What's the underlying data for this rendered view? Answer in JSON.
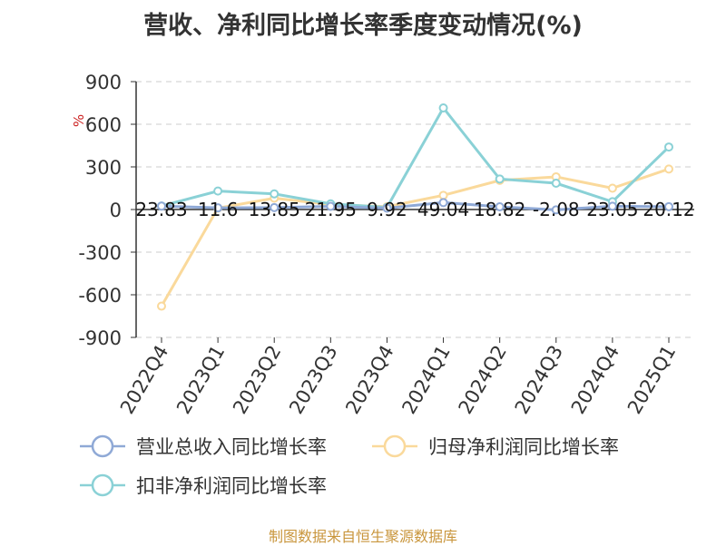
{
  "chart_data": {
    "type": "line",
    "title": "营收、净利同比增长率季度变动情况(%)",
    "ylabel": "%",
    "xlabel": "",
    "categories": [
      "2022Q4",
      "2023Q1",
      "2023Q2",
      "2023Q3",
      "2023Q4",
      "2024Q1",
      "2024Q2",
      "2024Q3",
      "2024Q4",
      "2025Q1"
    ],
    "ylim": [
      -900,
      900
    ],
    "yticks": [
      "900",
      "600",
      "300",
      "0",
      "-300",
      "-600",
      "-900"
    ],
    "grid": true,
    "legend_position": "bottom",
    "series": [
      {
        "name": "营业总收入同比增长率",
        "color": "#8fa9d6",
        "values": [
          23.83,
          11.6,
          13.85,
          21.95,
          9.92,
          49.04,
          18.82,
          -2.08,
          23.05,
          20.12
        ],
        "labels": [
          "23.83",
          "11.6",
          "13.85",
          "21.95",
          "9.92",
          "49.04",
          "18.82",
          "-2.08",
          "23.05",
          "20.12"
        ]
      },
      {
        "name": "归母净利润同比增长率",
        "color": "#fad99b",
        "values": [
          -680,
          10,
          80,
          35,
          20,
          100,
          205,
          230,
          150,
          285
        ]
      },
      {
        "name": "扣非净利润同比增长率",
        "color": "#8ad1d6",
        "values": [
          25,
          130,
          110,
          40,
          15,
          715,
          215,
          185,
          55,
          440
        ]
      }
    ]
  },
  "footer": {
    "source": "制图数据来自恒生聚源数据库"
  }
}
